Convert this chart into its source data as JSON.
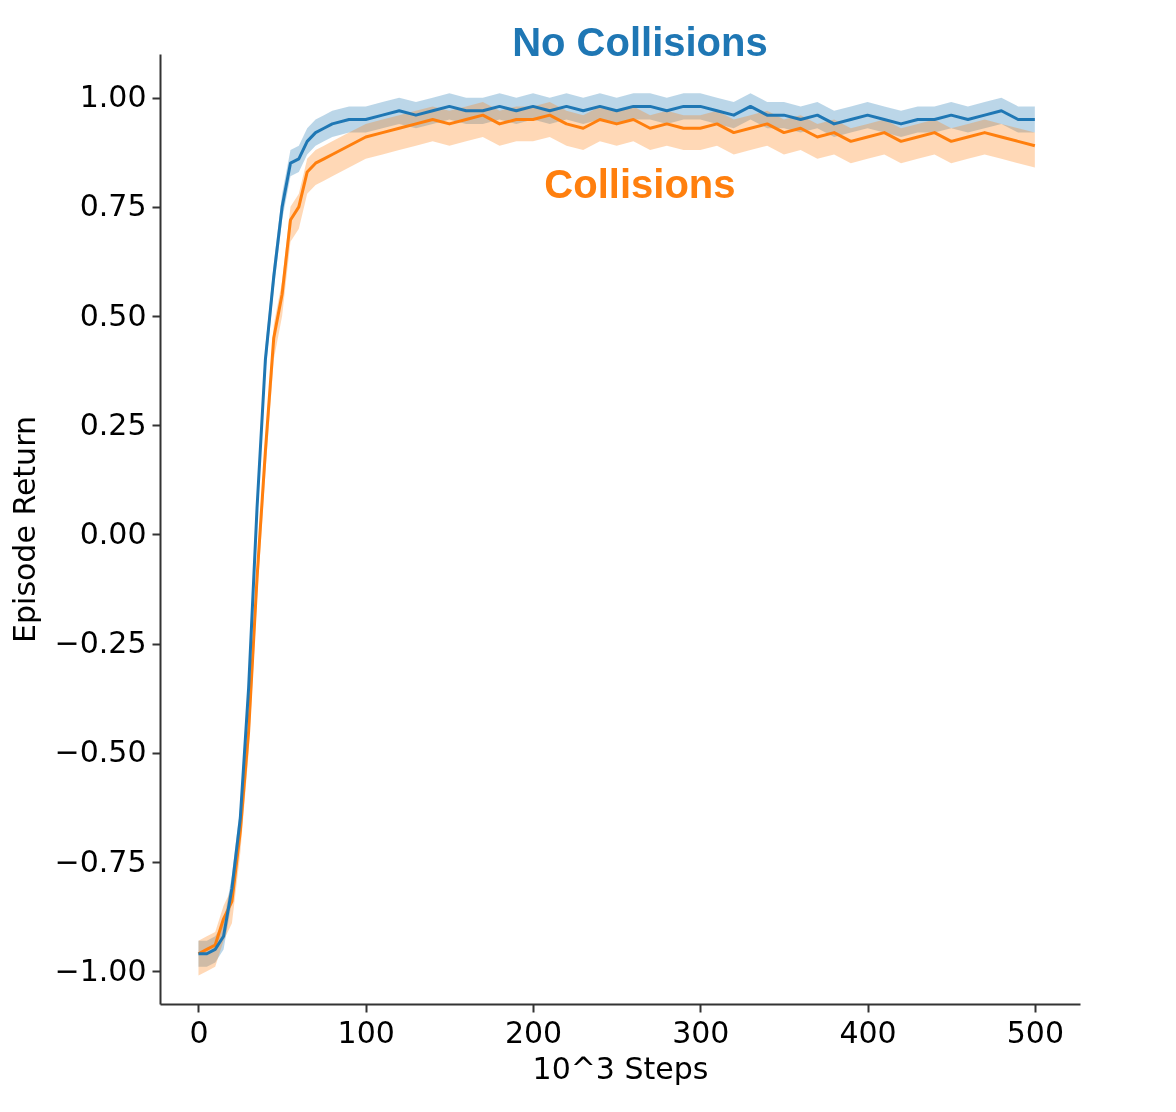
{
  "chart_data": {
    "type": "line",
    "xlabel": "10^3 Steps",
    "ylabel": "Episode Return",
    "x": [
      0,
      5,
      10,
      15,
      20,
      25,
      30,
      35,
      40,
      45,
      50,
      55,
      60,
      65,
      70,
      75,
      80,
      90,
      100,
      110,
      120,
      130,
      140,
      150,
      160,
      170,
      180,
      190,
      200,
      210,
      220,
      230,
      240,
      250,
      260,
      270,
      280,
      290,
      300,
      310,
      320,
      330,
      340,
      350,
      360,
      370,
      380,
      390,
      400,
      410,
      420,
      430,
      440,
      450,
      460,
      470,
      480,
      490,
      500
    ],
    "series": [
      {
        "name": "No Collisions",
        "color": "#1f77b4",
        "values": [
          -0.96,
          -0.96,
          -0.95,
          -0.92,
          -0.81,
          -0.65,
          -0.35,
          0.06,
          0.4,
          0.59,
          0.75,
          0.85,
          0.86,
          0.9,
          0.92,
          0.93,
          0.94,
          0.95,
          0.95,
          0.96,
          0.97,
          0.96,
          0.97,
          0.98,
          0.97,
          0.97,
          0.98,
          0.97,
          0.98,
          0.97,
          0.98,
          0.97,
          0.98,
          0.97,
          0.98,
          0.98,
          0.97,
          0.98,
          0.98,
          0.97,
          0.96,
          0.98,
          0.96,
          0.96,
          0.95,
          0.96,
          0.94,
          0.95,
          0.96,
          0.95,
          0.94,
          0.95,
          0.95,
          0.96,
          0.95,
          0.96,
          0.97,
          0.95,
          0.95
        ],
        "lower": [
          -0.99,
          -0.99,
          -0.98,
          -0.95,
          -0.84,
          -0.68,
          -0.38,
          0.03,
          0.37,
          0.56,
          0.72,
          0.82,
          0.83,
          0.87,
          0.89,
          0.9,
          0.91,
          0.92,
          0.92,
          0.93,
          0.94,
          0.93,
          0.94,
          0.95,
          0.94,
          0.94,
          0.95,
          0.94,
          0.95,
          0.94,
          0.95,
          0.94,
          0.95,
          0.94,
          0.95,
          0.95,
          0.94,
          0.95,
          0.95,
          0.94,
          0.93,
          0.95,
          0.93,
          0.93,
          0.92,
          0.93,
          0.91,
          0.92,
          0.93,
          0.92,
          0.91,
          0.92,
          0.92,
          0.93,
          0.92,
          0.93,
          0.94,
          0.92,
          0.92
        ],
        "upper": [
          -0.93,
          -0.93,
          -0.92,
          -0.89,
          -0.78,
          -0.62,
          -0.32,
          0.09,
          0.43,
          0.62,
          0.78,
          0.88,
          0.89,
          0.93,
          0.95,
          0.96,
          0.97,
          0.98,
          0.98,
          0.99,
          1.0,
          0.99,
          1.0,
          1.01,
          1.0,
          1.0,
          1.01,
          1.0,
          1.01,
          1.0,
          1.01,
          1.0,
          1.01,
          1.0,
          1.01,
          1.01,
          1.0,
          1.01,
          1.01,
          1.0,
          0.99,
          1.01,
          0.99,
          0.99,
          0.98,
          0.99,
          0.97,
          0.98,
          0.99,
          0.98,
          0.97,
          0.98,
          0.98,
          0.99,
          0.98,
          0.99,
          1.0,
          0.98,
          0.98
        ]
      },
      {
        "name": "Collisions",
        "color": "#ff7f0e",
        "values": [
          -0.96,
          -0.95,
          -0.94,
          -0.88,
          -0.84,
          -0.68,
          -0.45,
          -0.1,
          0.19,
          0.45,
          0.55,
          0.72,
          0.75,
          0.83,
          0.85,
          0.86,
          0.87,
          0.89,
          0.91,
          0.92,
          0.93,
          0.94,
          0.95,
          0.94,
          0.95,
          0.96,
          0.94,
          0.95,
          0.95,
          0.96,
          0.94,
          0.93,
          0.95,
          0.94,
          0.95,
          0.93,
          0.94,
          0.93,
          0.93,
          0.94,
          0.92,
          0.93,
          0.94,
          0.92,
          0.93,
          0.91,
          0.92,
          0.9,
          0.91,
          0.92,
          0.9,
          0.91,
          0.92,
          0.9,
          0.91,
          0.92,
          0.91,
          0.9,
          0.89
        ],
        "lower": [
          -1.01,
          -1.0,
          -0.99,
          -0.93,
          -0.89,
          -0.73,
          -0.5,
          -0.15,
          0.14,
          0.4,
          0.5,
          0.67,
          0.7,
          0.78,
          0.8,
          0.81,
          0.82,
          0.84,
          0.86,
          0.87,
          0.88,
          0.89,
          0.9,
          0.89,
          0.9,
          0.91,
          0.89,
          0.9,
          0.9,
          0.91,
          0.89,
          0.88,
          0.9,
          0.89,
          0.9,
          0.88,
          0.89,
          0.88,
          0.88,
          0.89,
          0.87,
          0.88,
          0.89,
          0.87,
          0.88,
          0.86,
          0.87,
          0.85,
          0.86,
          0.87,
          0.85,
          0.86,
          0.87,
          0.85,
          0.86,
          0.87,
          0.86,
          0.85,
          0.84
        ],
        "upper": [
          -0.93,
          -0.92,
          -0.91,
          -0.85,
          -0.81,
          -0.65,
          -0.42,
          -0.07,
          0.22,
          0.48,
          0.58,
          0.75,
          0.78,
          0.86,
          0.88,
          0.89,
          0.9,
          0.92,
          0.94,
          0.95,
          0.96,
          0.97,
          0.98,
          0.97,
          0.98,
          0.99,
          0.97,
          0.98,
          0.98,
          0.99,
          0.97,
          0.96,
          0.98,
          0.97,
          0.98,
          0.96,
          0.97,
          0.96,
          0.96,
          0.97,
          0.95,
          0.96,
          0.97,
          0.95,
          0.96,
          0.94,
          0.95,
          0.93,
          0.94,
          0.95,
          0.93,
          0.94,
          0.95,
          0.93,
          0.94,
          0.95,
          0.94,
          0.93,
          0.92
        ]
      }
    ],
    "xlim": [
      -23,
      527
    ],
    "xticks": [
      0,
      100,
      200,
      300,
      400,
      500
    ],
    "ylim": [
      -1.075,
      1.1
    ],
    "yticks": [
      {
        "value": -1.0,
        "label": "−1.00"
      },
      {
        "value": -0.75,
        "label": "−0.75"
      },
      {
        "value": -0.5,
        "label": "−0.50"
      },
      {
        "value": -0.25,
        "label": "−0.25"
      },
      {
        "value": 0.0,
        "label": "0.00"
      },
      {
        "value": 0.25,
        "label": "0.25"
      },
      {
        "value": 0.5,
        "label": "0.50"
      },
      {
        "value": 0.75,
        "label": "0.75"
      },
      {
        "value": 1.0,
        "label": "1.00"
      }
    ],
    "grid": false,
    "legend": false,
    "line_style": "solid",
    "marker": "none"
  }
}
